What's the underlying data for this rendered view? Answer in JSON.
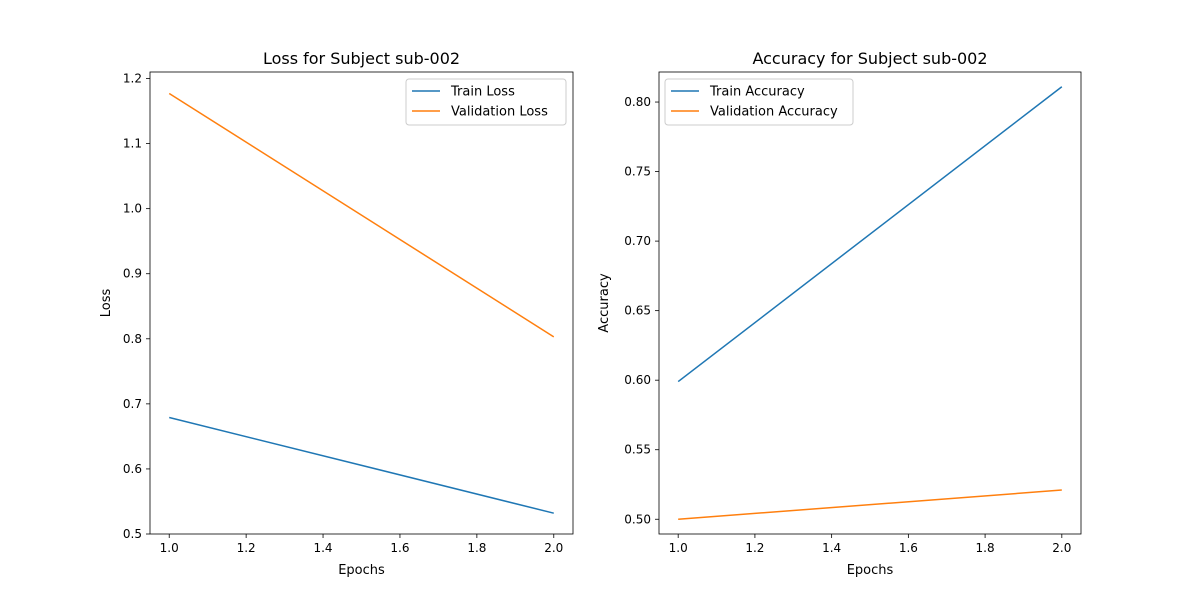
{
  "chart_data": [
    {
      "type": "line",
      "title": "Loss for Subject sub-002",
      "xlabel": "Epochs",
      "ylabel": "Loss",
      "x": [
        1.0,
        2.0
      ],
      "xlim": [
        0.95,
        2.05
      ],
      "ylim": [
        0.5,
        1.21
      ],
      "xticks": [
        1.0,
        1.2,
        1.4,
        1.6,
        1.8,
        2.0
      ],
      "yticks": [
        0.5,
        0.6,
        0.7,
        0.8,
        0.9,
        1.0,
        1.1,
        1.2
      ],
      "xtick_labels": [
        "1.0",
        "1.2",
        "1.4",
        "1.6",
        "1.8",
        "2.0"
      ],
      "ytick_labels": [
        "0.5",
        "0.6",
        "0.7",
        "0.8",
        "0.9",
        "1.0",
        "1.1",
        "1.2"
      ],
      "grid": false,
      "legend_position": "upper right",
      "series": [
        {
          "name": "Train Loss",
          "color": "#1f77b4",
          "values": [
            0.679,
            0.532
          ]
        },
        {
          "name": "Validation Loss",
          "color": "#ff7f0e",
          "values": [
            1.177,
            0.803
          ]
        }
      ]
    },
    {
      "type": "line",
      "title": "Accuracy for Subject sub-002",
      "xlabel": "Epochs",
      "ylabel": "Accuracy",
      "x": [
        1.0,
        2.0
      ],
      "xlim": [
        0.95,
        2.05
      ],
      "ylim": [
        0.4894,
        0.8216
      ],
      "xticks": [
        1.0,
        1.2,
        1.4,
        1.6,
        1.8,
        2.0
      ],
      "yticks": [
        0.5,
        0.55,
        0.6,
        0.65,
        0.7,
        0.75,
        0.8
      ],
      "xtick_labels": [
        "1.0",
        "1.2",
        "1.4",
        "1.6",
        "1.8",
        "2.0"
      ],
      "ytick_labels": [
        "0.50",
        "0.55",
        "0.60",
        "0.65",
        "0.70",
        "0.75",
        "0.80"
      ],
      "grid": false,
      "legend_position": "upper left",
      "series": [
        {
          "name": "Train Accuracy",
          "color": "#1f77b4",
          "values": [
            0.599,
            0.811
          ]
        },
        {
          "name": "Validation Accuracy",
          "color": "#ff7f0e",
          "values": [
            0.5,
            0.521
          ]
        }
      ]
    }
  ]
}
